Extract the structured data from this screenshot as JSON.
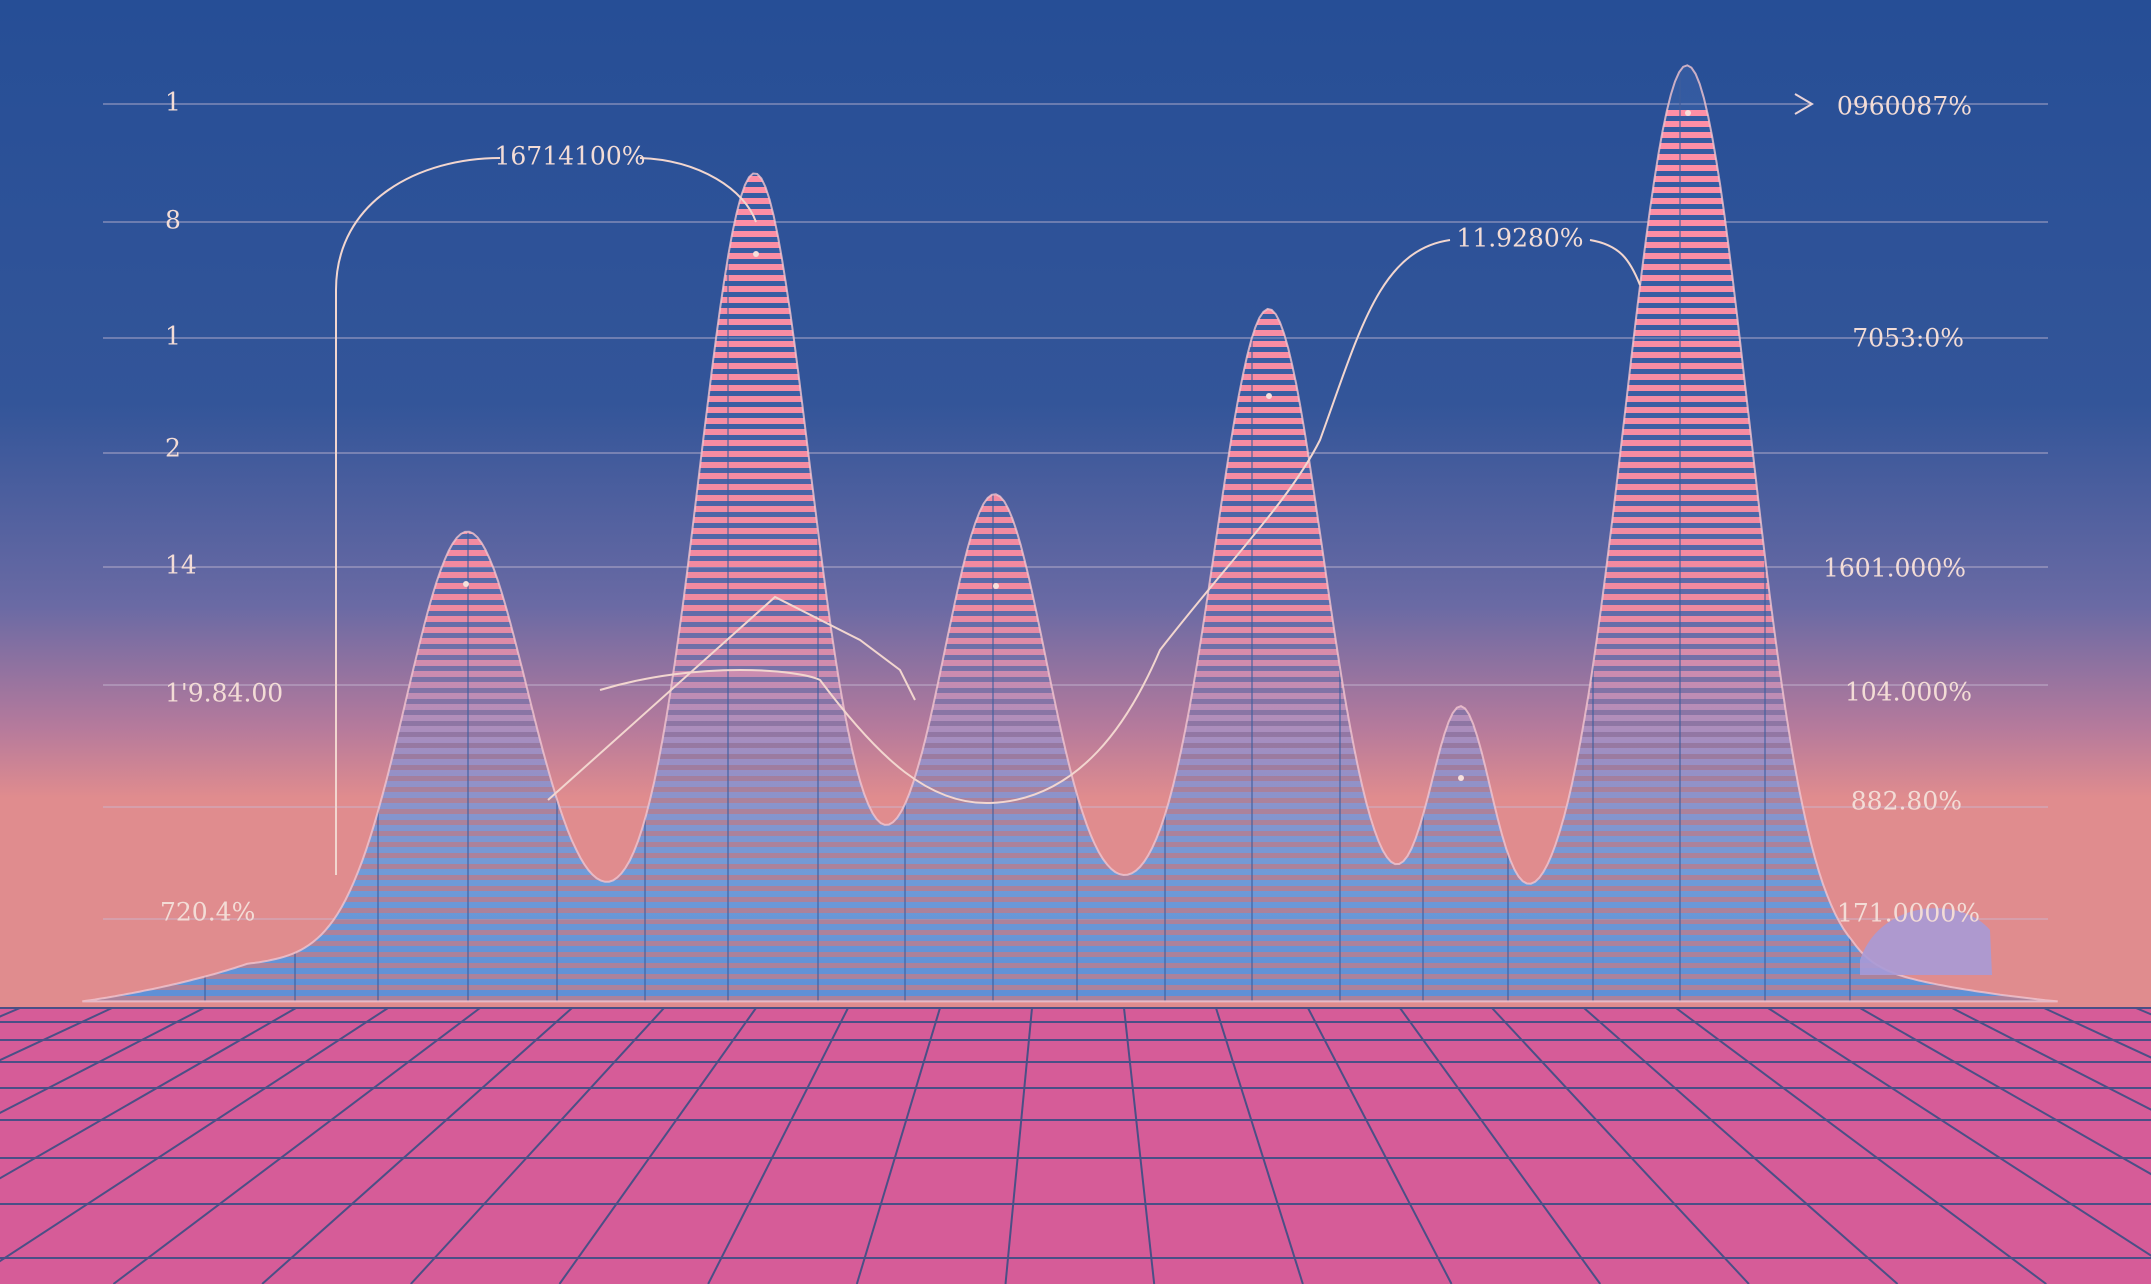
{
  "left_labels": [
    "1",
    "8",
    "1",
    "2",
    "14",
    "1'9.84.00",
    "720.4%"
  ],
  "right_labels": [
    "0960087%",
    "7053:0%",
    "1601.000%",
    "104.000%",
    "882.80%",
    "171.0000%"
  ],
  "annotations": [
    "16714100%",
    "11.9280%"
  ]
}
